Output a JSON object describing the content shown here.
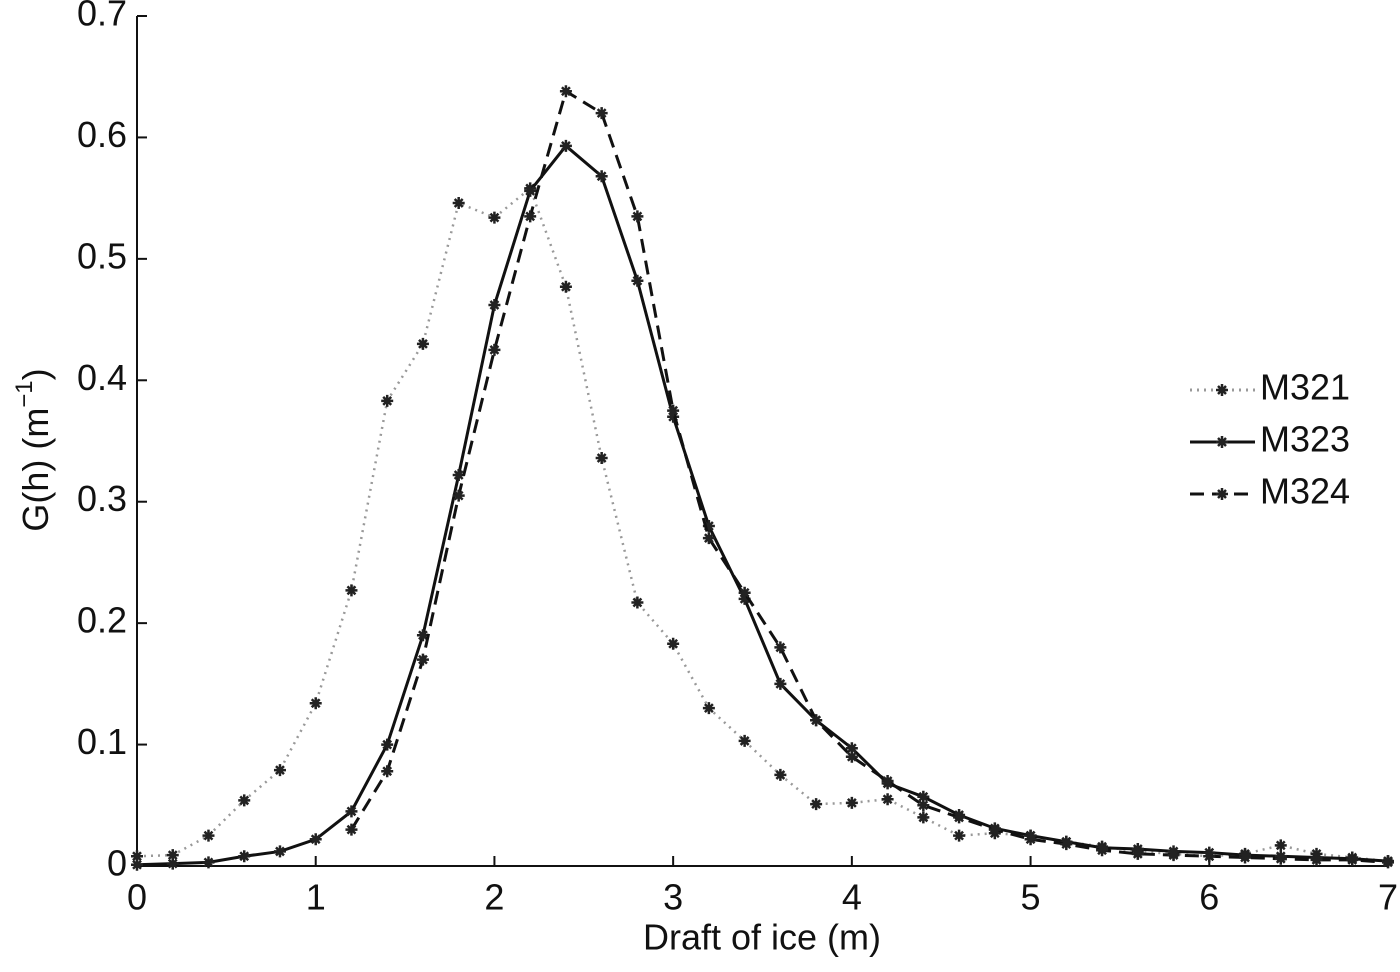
{
  "chart_data": {
    "type": "line",
    "xlabel": "Draft of ice (m)",
    "ylabel": [
      "G(h) (m",
      "−1",
      ")"
    ],
    "x": [
      0,
      0.2,
      0.4,
      0.6,
      0.8,
      1.0,
      1.2,
      1.4,
      1.6,
      1.8,
      2.0,
      2.2,
      2.4,
      2.6,
      2.8,
      3.0,
      3.2,
      3.4,
      3.6,
      3.8,
      4.0,
      4.2,
      4.4,
      4.6,
      4.8,
      5.0,
      5.2,
      5.4,
      5.6,
      5.8,
      6.0,
      6.2,
      6.4,
      6.6,
      6.8,
      7.0
    ],
    "series": [
      {
        "name": "M321",
        "color": "#999999",
        "dash": "dotted",
        "values": [
          0.008,
          0.009,
          0.025,
          0.054,
          0.079,
          0.134,
          0.227,
          0.383,
          0.43,
          0.546,
          0.534,
          0.558,
          0.477,
          0.336,
          0.217,
          0.183,
          0.13,
          0.103,
          0.075,
          0.051,
          0.052,
          0.055,
          0.04,
          0.025,
          0.027,
          0.025,
          0.02,
          0.016,
          0.012,
          0.01,
          0.008,
          0.01,
          0.017,
          0.01,
          0.007,
          0.004
        ]
      },
      {
        "name": "M323",
        "color": "#111111",
        "dash": "solid",
        "values": [
          0.001,
          0.002,
          0.003,
          0.008,
          0.012,
          0.022,
          0.045,
          0.1,
          0.19,
          0.322,
          0.462,
          0.556,
          0.593,
          0.568,
          0.482,
          0.37,
          0.28,
          0.22,
          0.15,
          0.12,
          0.097,
          0.068,
          0.057,
          0.042,
          0.031,
          0.025,
          0.02,
          0.015,
          0.014,
          0.012,
          0.011,
          0.009,
          0.008,
          0.007,
          0.006,
          0.004
        ]
      },
      {
        "name": "M324",
        "color": "#111111",
        "dash": "dashed",
        "values": [
          null,
          null,
          null,
          null,
          null,
          null,
          0.03,
          0.078,
          0.17,
          0.305,
          0.425,
          0.535,
          0.638,
          0.62,
          0.535,
          0.375,
          0.27,
          0.225,
          0.18,
          0.12,
          0.09,
          0.07,
          0.05,
          0.04,
          0.03,
          0.022,
          0.018,
          0.013,
          0.01,
          0.009,
          0.008,
          0.007,
          0.006,
          0.005,
          0.005,
          0.003
        ]
      }
    ],
    "xlim": [
      0,
      7
    ],
    "xticks": [
      0,
      1,
      2,
      3,
      4,
      5,
      6,
      7
    ],
    "ylim": [
      0,
      0.7
    ],
    "yticks": [
      0,
      0.1,
      0.2,
      0.3,
      0.4,
      0.5,
      0.6,
      0.7
    ],
    "grid": false,
    "legend": "right"
  }
}
